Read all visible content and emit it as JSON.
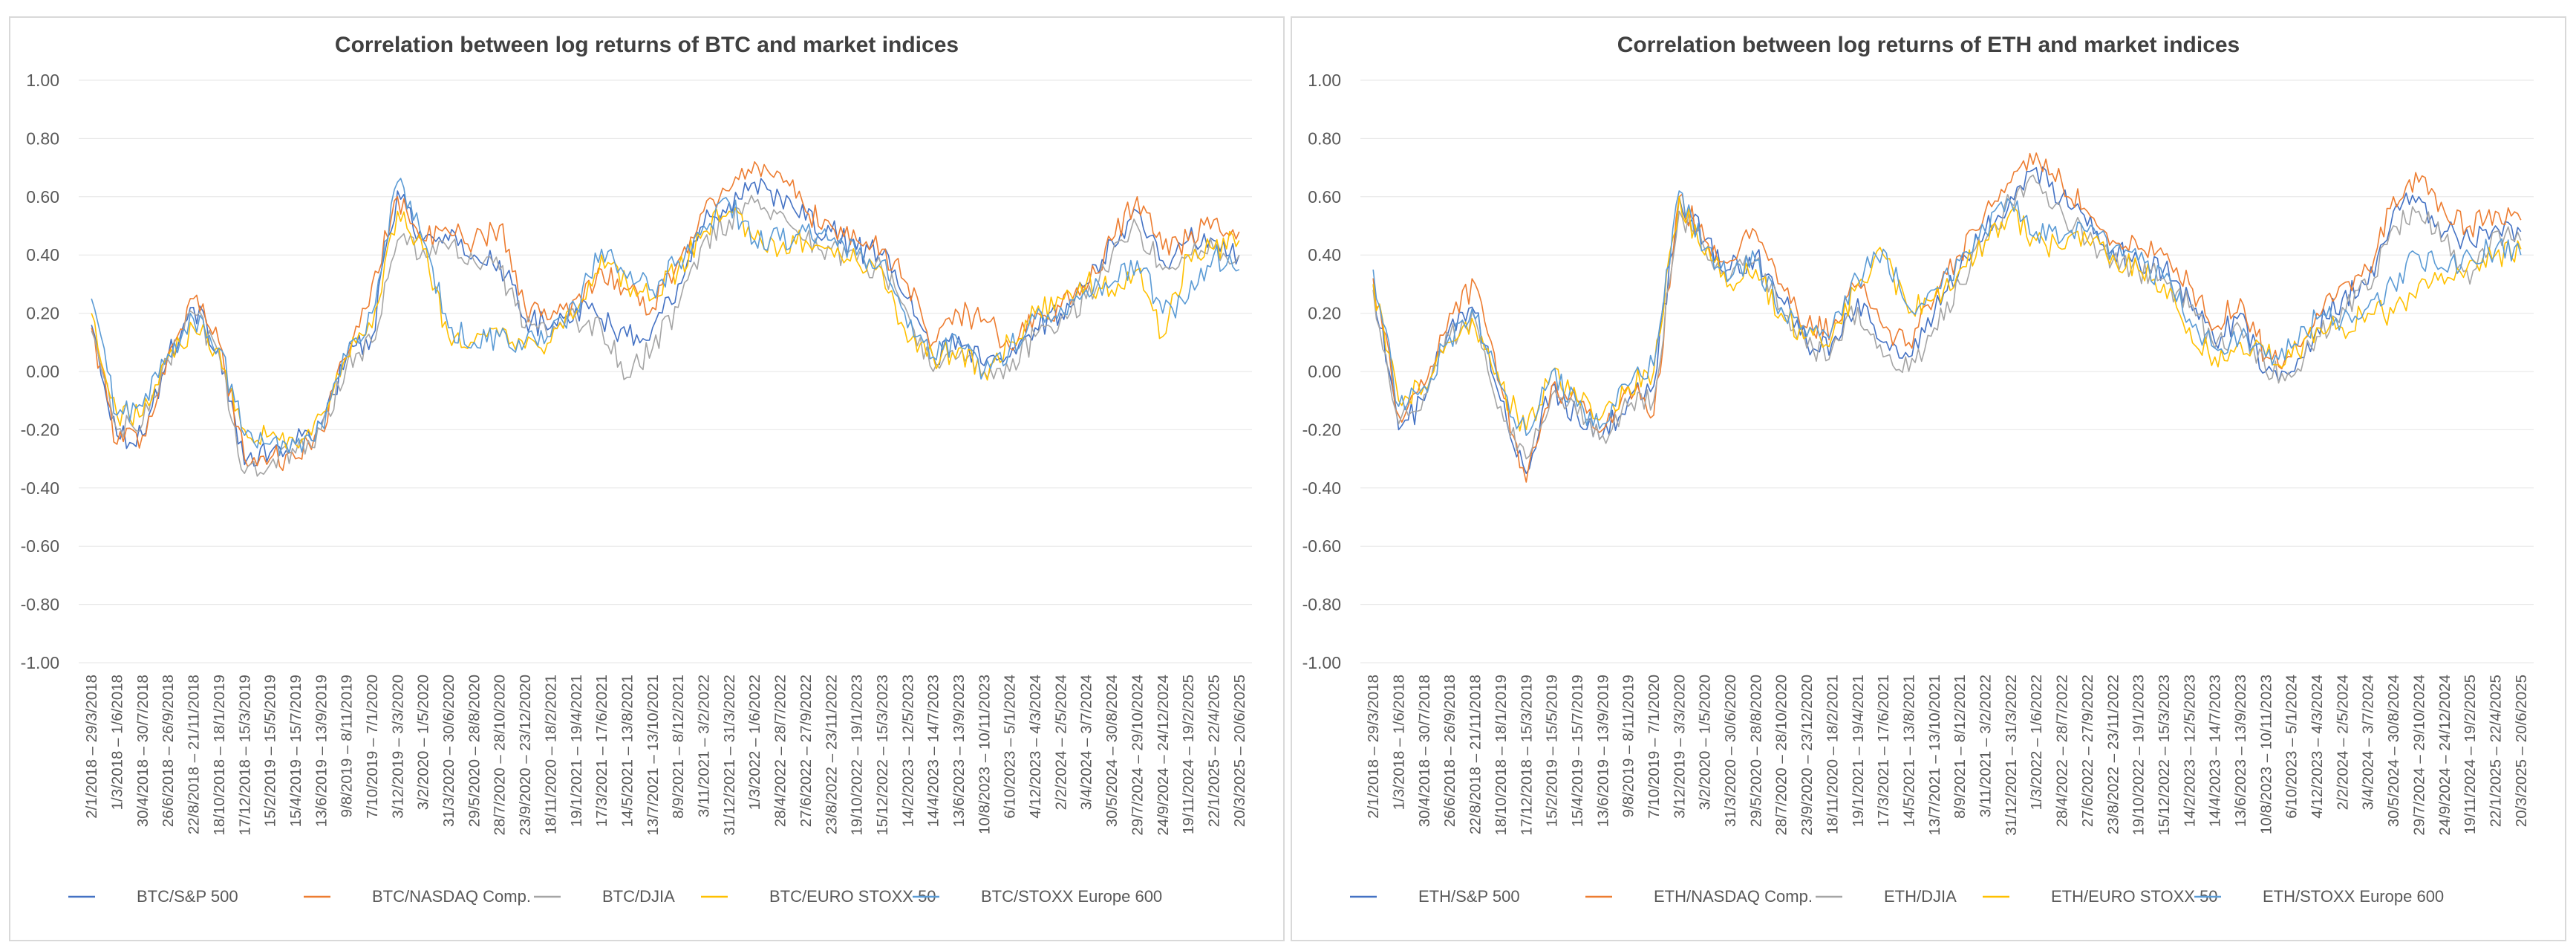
{
  "chart_data": [
    {
      "type": "line",
      "title": "Correlation between log returns of BTC and market indices",
      "xlabel": "",
      "ylabel": "",
      "ylim": [
        -1.0,
        1.0
      ],
      "yticks": [
        "1.00",
        "0.80",
        "0.60",
        "0.40",
        "0.20",
        "0.00",
        "-0.20",
        "-0.40",
        "-0.60",
        "-0.80",
        "-1.00"
      ],
      "categories": [
        "2/1/2018 – 29/3/2018",
        "1/3/2018 – 1/6/2018",
        "30/4/2018 – 30/7/2018",
        "26/6/2018 – 26/9/2018",
        "22/8/2018 – 21/11/2018",
        "18/10/2018 – 18/1/2019",
        "17/12/2018 – 15/3/2019",
        "15/2/2019 – 15/5/2019",
        "15/4/2019 – 15/7/2019",
        "13/6/2019 – 13/9/2019",
        "9/8/2019 – 8/11/2019",
        "7/10/2019 – 7/1/2020",
        "3/12/2019 – 3/3/2020",
        "3/2/2020 – 1/5/2020",
        "31/3/2020 – 30/6/2020",
        "29/5/2020 – 28/8/2020",
        "28/7/2020 – 28/10/2020",
        "23/9/2020 – 23/12/2020",
        "18/11/2020 – 18/2/2021",
        "19/1/2021 – 19/4/2021",
        "17/3/2021 – 17/6/2021",
        "14/5/2021 – 13/8/2021",
        "13/7/2021 – 13/10/2021",
        "8/9/2021 – 8/12/2021",
        "3/11/2021 – 3/2/2022",
        "31/12/2021 – 31/3/2022",
        "1/3/2022 – 1/6/2022",
        "28/4/2022 – 28/7/2022",
        "27/6/2022 – 27/9/2022",
        "23/8/2022 – 23/11/2022",
        "19/10/2022 – 19/1/2023",
        "15/12/2022 – 15/3/2023",
        "14/2/2023 – 12/5/2023",
        "14/4/2023 – 14/7/2023",
        "13/6/2023 – 13/9/2023",
        "10/8/2023 – 10/11/2023",
        "6/10/2023 – 5/1/2024",
        "4/12/2023 – 4/3/2024",
        "2/2/2024 – 2/5/2024",
        "3/4/2024 – 3/7/2024",
        "30/5/2024 – 30/8/2024",
        "29/7/2024 – 29/10/2024",
        "24/9/2024 – 24/12/2024",
        "19/11/2024 – 19/2/2025",
        "22/1/2025 – 22/4/2025",
        "20/3/2025 – 20/6/2025"
      ],
      "series": [
        {
          "name": "BTC/S&P 500",
          "color": "#4472c4",
          "values": [
            0.16,
            -0.22,
            -0.22,
            0.05,
            0.22,
            0.08,
            -0.32,
            -0.28,
            -0.25,
            -0.18,
            0.05,
            0.12,
            0.62,
            0.45,
            0.45,
            0.4,
            0.38,
            0.18,
            0.15,
            0.22,
            0.18,
            0.12,
            0.15,
            0.3,
            0.5,
            0.58,
            0.65,
            0.6,
            0.52,
            0.48,
            0.42,
            0.4,
            0.25,
            0.05,
            0.12,
            0.02,
            0.05,
            0.15,
            0.2,
            0.3,
            0.45,
            0.55,
            0.38,
            0.45,
            0.45,
            0.4
          ]
        },
        {
          "name": "BTC/NASDAQ Comp.",
          "color": "#ed7d31",
          "values": [
            0.15,
            -0.25,
            -0.22,
            0.06,
            0.25,
            0.1,
            -0.3,
            -0.3,
            -0.3,
            -0.2,
            0.05,
            0.3,
            0.6,
            0.45,
            0.48,
            0.45,
            0.5,
            0.22,
            0.18,
            0.25,
            0.35,
            0.28,
            0.22,
            0.38,
            0.55,
            0.62,
            0.72,
            0.68,
            0.55,
            0.5,
            0.45,
            0.42,
            0.3,
            0.1,
            0.2,
            0.18,
            0.08,
            0.2,
            0.22,
            0.28,
            0.45,
            0.6,
            0.42,
            0.45,
            0.52,
            0.48
          ]
        },
        {
          "name": "BTC/DJIA",
          "color": "#a5a5a5",
          "values": [
            0.14,
            -0.2,
            -0.18,
            0.04,
            0.2,
            0.06,
            -0.35,
            -0.32,
            -0.28,
            -0.2,
            0.02,
            0.1,
            0.45,
            0.42,
            0.42,
            0.38,
            0.35,
            0.15,
            0.12,
            0.18,
            0.15,
            -0.02,
            0.08,
            0.22,
            0.45,
            0.52,
            0.58,
            0.55,
            0.45,
            0.42,
            0.38,
            0.35,
            0.2,
            0.0,
            0.05,
            0.0,
            0.0,
            0.12,
            0.18,
            0.25,
            0.4,
            0.5,
            0.35,
            0.4,
            0.42,
            0.4
          ]
        },
        {
          "name": "BTC/EURO STOXX 50",
          "color": "#ffc000",
          "values": [
            0.2,
            -0.15,
            -0.15,
            0.05,
            0.15,
            0.08,
            -0.2,
            -0.22,
            -0.25,
            -0.15,
            0.05,
            0.15,
            0.55,
            0.42,
            0.12,
            0.1,
            0.12,
            0.08,
            0.1,
            0.2,
            0.4,
            0.3,
            0.25,
            0.35,
            0.48,
            0.55,
            0.45,
            0.42,
            0.45,
            0.42,
            0.38,
            0.35,
            0.1,
            0.05,
            0.08,
            0.0,
            0.1,
            0.2,
            0.25,
            0.3,
            0.28,
            0.35,
            0.12,
            0.4,
            0.42,
            0.45
          ]
        },
        {
          "name": "BTC/STOXX Europe 600",
          "color": "#5b9bd5",
          "values": [
            0.25,
            -0.15,
            -0.12,
            0.06,
            0.18,
            0.08,
            -0.22,
            -0.25,
            -0.25,
            -0.18,
            0.05,
            0.2,
            0.65,
            0.45,
            0.15,
            0.1,
            0.12,
            0.1,
            0.12,
            0.22,
            0.42,
            0.32,
            0.28,
            0.38,
            0.5,
            0.58,
            0.45,
            0.45,
            0.48,
            0.45,
            0.4,
            0.38,
            0.15,
            0.05,
            0.1,
            0.0,
            0.08,
            0.18,
            0.22,
            0.28,
            0.3,
            0.38,
            0.2,
            0.25,
            0.4,
            0.35
          ]
        }
      ],
      "legend": "bottom"
    },
    {
      "type": "line",
      "title": "Correlation between log returns of ETH and market indices",
      "xlabel": "",
      "ylabel": "",
      "ylim": [
        -1.0,
        1.0
      ],
      "yticks": [
        "1.00",
        "0.80",
        "0.60",
        "0.40",
        "0.20",
        "0.00",
        "-0.20",
        "-0.40",
        "-0.60",
        "-0.80",
        "-1.00"
      ],
      "categories": [
        "2/1/2018 – 29/3/2018",
        "1/3/2018 – 1/6/2018",
        "30/4/2018 – 30/7/2018",
        "26/6/2018 – 26/9/2018",
        "22/8/2018 – 21/11/2018",
        "18/10/2018 – 18/1/2019",
        "17/12/2018 – 15/3/2019",
        "15/2/2019 – 15/5/2019",
        "15/4/2019 – 15/7/2019",
        "13/6/2019 – 13/9/2019",
        "9/8/2019 – 8/11/2019",
        "7/10/2019 – 7/1/2020",
        "3/12/2019 – 3/3/2020",
        "3/2/2020 – 1/5/2020",
        "31/3/2020 – 30/6/2020",
        "29/5/2020 – 28/8/2020",
        "28/7/2020 – 28/10/2020",
        "23/9/2020 – 23/12/2020",
        "18/11/2020 – 18/2/2021",
        "19/1/2021 – 19/4/2021",
        "17/3/2021 – 17/6/2021",
        "14/5/2021 – 13/8/2021",
        "13/7/2021 – 13/10/2021",
        "8/9/2021 – 8/12/2021",
        "3/11/2021 – 3/2/2022",
        "31/12/2021 – 31/3/2022",
        "1/3/2022 – 1/6/2022",
        "28/4/2022 – 28/7/2022",
        "27/6/2022 – 27/9/2022",
        "23/8/2022 – 23/11/2022",
        "19/10/2022 – 19/1/2023",
        "15/12/2022 – 15/3/2023",
        "14/2/2023 – 12/5/2023",
        "14/4/2023 – 14/7/2023",
        "13/6/2023 – 13/9/2023",
        "10/8/2023 – 10/11/2023",
        "6/10/2023 – 5/1/2024",
        "4/12/2023 – 4/3/2024",
        "2/2/2024 – 2/5/2024",
        "3/4/2024 – 3/7/2024",
        "30/5/2024 – 30/8/2024",
        "29/7/2024 – 29/10/2024",
        "24/9/2024 – 24/12/2024",
        "19/11/2024 – 19/2/2025",
        "22/1/2025 – 22/4/2025",
        "20/3/2025 – 20/6/2025"
      ],
      "series": [
        {
          "name": "ETH/S&P 500",
          "color": "#4472c4",
          "values": [
            0.3,
            -0.2,
            -0.1,
            0.15,
            0.2,
            -0.1,
            -0.35,
            -0.05,
            -0.15,
            -0.22,
            -0.1,
            -0.05,
            0.6,
            0.45,
            0.35,
            0.4,
            0.25,
            0.1,
            0.1,
            0.25,
            0.1,
            0.05,
            0.2,
            0.35,
            0.48,
            0.6,
            0.7,
            0.6,
            0.5,
            0.42,
            0.38,
            0.35,
            0.25,
            0.1,
            0.2,
            0.0,
            0.0,
            0.15,
            0.25,
            0.3,
            0.55,
            0.6,
            0.48,
            0.45,
            0.5,
            0.48
          ]
        },
        {
          "name": "ETH/NASDAQ Comp.",
          "color": "#ed7d31",
          "values": [
            0.32,
            -0.15,
            -0.05,
            0.2,
            0.3,
            -0.05,
            -0.38,
            -0.05,
            -0.1,
            -0.2,
            -0.05,
            -0.15,
            0.6,
            0.45,
            0.38,
            0.48,
            0.3,
            0.15,
            0.15,
            0.3,
            0.15,
            0.1,
            0.25,
            0.4,
            0.55,
            0.65,
            0.75,
            0.65,
            0.55,
            0.45,
            0.42,
            0.4,
            0.3,
            0.15,
            0.25,
            0.05,
            0.05,
            0.2,
            0.3,
            0.35,
            0.6,
            0.65,
            0.55,
            0.5,
            0.55,
            0.52
          ]
        },
        {
          "name": "ETH/DJIA",
          "color": "#a5a5a5",
          "values": [
            0.28,
            -0.18,
            -0.08,
            0.12,
            0.18,
            -0.12,
            -0.3,
            -0.08,
            -0.15,
            -0.22,
            -0.12,
            -0.1,
            0.55,
            0.42,
            0.32,
            0.38,
            0.22,
            0.08,
            0.08,
            0.22,
            0.05,
            0.0,
            0.15,
            0.3,
            0.45,
            0.58,
            0.65,
            0.55,
            0.45,
            0.38,
            0.35,
            0.32,
            0.22,
            0.08,
            0.15,
            0.0,
            -0.02,
            0.12,
            0.22,
            0.28,
            0.5,
            0.55,
            0.45,
            0.3,
            0.48,
            0.45
          ]
        },
        {
          "name": "ETH/EURO STOXX 50",
          "color": "#ffc000",
          "values": [
            0.3,
            -0.1,
            -0.05,
            0.1,
            0.15,
            -0.05,
            -0.2,
            0.0,
            -0.1,
            -0.15,
            -0.05,
            0.0,
            0.6,
            0.4,
            0.3,
            0.35,
            0.2,
            0.12,
            0.12,
            0.3,
            0.4,
            0.2,
            0.25,
            0.35,
            0.45,
            0.55,
            0.45,
            0.42,
            0.45,
            0.4,
            0.35,
            0.3,
            0.15,
            0.05,
            0.1,
            0.05,
            0.05,
            0.15,
            0.15,
            0.2,
            0.2,
            0.3,
            0.3,
            0.38,
            0.4,
            0.42
          ]
        },
        {
          "name": "ETH/STOXX Europe 600",
          "color": "#5b9bd5",
          "values": [
            0.35,
            -0.12,
            -0.05,
            0.12,
            0.18,
            -0.05,
            -0.22,
            0.0,
            -0.12,
            -0.18,
            -0.05,
            0.02,
            0.62,
            0.42,
            0.32,
            0.38,
            0.22,
            0.12,
            0.15,
            0.32,
            0.42,
            0.22,
            0.28,
            0.38,
            0.48,
            0.58,
            0.48,
            0.45,
            0.48,
            0.42,
            0.38,
            0.32,
            0.18,
            0.08,
            0.12,
            0.05,
            0.08,
            0.18,
            0.18,
            0.22,
            0.3,
            0.4,
            0.35,
            0.4,
            0.42,
            0.4
          ]
        }
      ],
      "legend": "bottom"
    }
  ]
}
